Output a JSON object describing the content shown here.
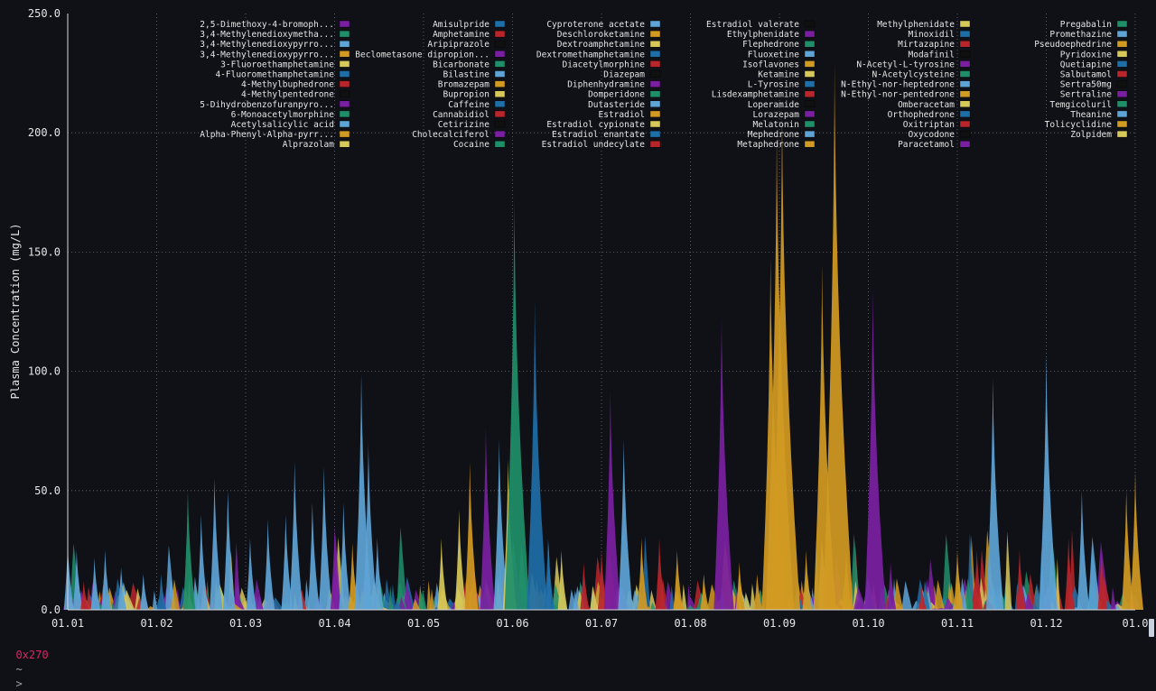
{
  "terminal": {
    "host": "0x270",
    "cwd": "~",
    "prompt_symbol": ">"
  },
  "colors": {
    "background": "#0f1117",
    "axis": "#d9d9d9",
    "grid": "#6b6f78",
    "text": "#e6e6e6",
    "palette": {
      "purple": "#7b1fa2",
      "green": "#1f8f6a",
      "lightblue": "#5ea4d6",
      "orange": "#d19a22",
      "yellow": "#d7c85a",
      "blue": "#1e6ea8",
      "red": "#b8262b",
      "black": "#101010",
      "teal": "#2a9a7e"
    }
  },
  "chart_data": {
    "type": "area",
    "title": "",
    "xlabel": "",
    "ylabel": "Plasma Concentration (mg/L)",
    "ylim": [
      0,
      250
    ],
    "y_ticks": [
      "0.0",
      "50.0",
      "100.0",
      "150.0",
      "200.0",
      "250.0"
    ],
    "x_ticks": [
      "01.01",
      "01.02",
      "01.03",
      "01.04",
      "01.05",
      "01.06",
      "01.07",
      "01.08",
      "01.09",
      "01.10",
      "01.11",
      "01.12",
      "01.0"
    ],
    "grid": true,
    "legend_placement": "top",
    "legend": [
      [
        {
          "name": "2,5-Dimethoxy-4-bromoph...",
          "color": "purple"
        },
        {
          "name": "3,4-Methylenedioxymetha...",
          "color": "green"
        },
        {
          "name": "3,4-Methylenedioxypyrro...",
          "color": "lightblue"
        },
        {
          "name": "3,4-Methylenedioxypyrro...",
          "color": "orange"
        },
        {
          "name": "3-Fluoroethamphetamine",
          "color": "yellow"
        },
        {
          "name": "4-Fluoromethamphetamine",
          "color": "blue"
        },
        {
          "name": "4-Methylbuphedrone",
          "color": "red"
        },
        {
          "name": "4-Methylpentedrone",
          "color": "black"
        },
        {
          "name": "5-Dihydrobenzofuranpyro...",
          "color": "purple"
        },
        {
          "name": "6-Monoacetylmorphine",
          "color": "green"
        },
        {
          "name": "Acetylsalicylic acid",
          "color": "lightblue"
        },
        {
          "name": "Alpha-Phenyl-Alpha-pyrr...",
          "color": "orange"
        },
        {
          "name": "Alprazolam",
          "color": "yellow"
        }
      ],
      [
        {
          "name": "Amisulpride",
          "color": "blue"
        },
        {
          "name": "Amphetamine",
          "color": "red"
        },
        {
          "name": "Aripiprazole",
          "color": "black"
        },
        {
          "name": "Beclometasone dipropion...",
          "color": "purple"
        },
        {
          "name": "Bicarbonate",
          "color": "green"
        },
        {
          "name": "Bilastine",
          "color": "lightblue"
        },
        {
          "name": "Bromazepam",
          "color": "orange"
        },
        {
          "name": "Bupropion",
          "color": "yellow"
        },
        {
          "name": "Caffeine",
          "color": "blue"
        },
        {
          "name": "Cannabidiol",
          "color": "red"
        },
        {
          "name": "Cetirizine",
          "color": "black"
        },
        {
          "name": "Cholecalciferol",
          "color": "purple"
        },
        {
          "name": "Cocaine",
          "color": "green"
        }
      ],
      [
        {
          "name": "Cyproterone acetate",
          "color": "lightblue"
        },
        {
          "name": "Deschloroketamine",
          "color": "orange"
        },
        {
          "name": "Dextroamphetamine",
          "color": "yellow"
        },
        {
          "name": "Dextromethamphetamine",
          "color": "blue"
        },
        {
          "name": "Diacetylmorphine",
          "color": "red"
        },
        {
          "name": "Diazepam",
          "color": "black"
        },
        {
          "name": "Diphenhydramine",
          "color": "purple"
        },
        {
          "name": "Domperidone",
          "color": "green"
        },
        {
          "name": "Dutasteride",
          "color": "lightblue"
        },
        {
          "name": "Estradiol",
          "color": "orange"
        },
        {
          "name": "Estradiol cypionate",
          "color": "yellow"
        },
        {
          "name": "Estradiol enantate",
          "color": "blue"
        },
        {
          "name": "Estradiol undecylate",
          "color": "red"
        }
      ],
      [
        {
          "name": "Estradiol valerate",
          "color": "black"
        },
        {
          "name": "Ethylphenidate",
          "color": "purple"
        },
        {
          "name": "Flephedrone",
          "color": "green"
        },
        {
          "name": "Fluoxetine",
          "color": "lightblue"
        },
        {
          "name": "Isoflavones",
          "color": "orange"
        },
        {
          "name": "Ketamine",
          "color": "yellow"
        },
        {
          "name": "L-Tyrosine",
          "color": "blue"
        },
        {
          "name": "Lisdexamphetamine",
          "color": "red"
        },
        {
          "name": "Loperamide",
          "color": "black"
        },
        {
          "name": "Lorazepam",
          "color": "purple"
        },
        {
          "name": "Melatonin",
          "color": "green"
        },
        {
          "name": "Mephedrone",
          "color": "lightblue"
        },
        {
          "name": "Metaphedrone",
          "color": "orange"
        }
      ],
      [
        {
          "name": "Methylphenidate",
          "color": "yellow"
        },
        {
          "name": "Minoxidil",
          "color": "blue"
        },
        {
          "name": "Mirtazapine",
          "color": "red"
        },
        {
          "name": "Modafinil",
          "color": "black"
        },
        {
          "name": "N-Acetyl-L-tyrosine",
          "color": "purple"
        },
        {
          "name": "N-Acetylcysteine",
          "color": "green"
        },
        {
          "name": "N-Ethyl-nor-heptedrone",
          "color": "lightblue"
        },
        {
          "name": "N-Ethyl-nor-pentedrone",
          "color": "orange"
        },
        {
          "name": "Omberacetam",
          "color": "yellow"
        },
        {
          "name": "Orthophedrone",
          "color": "blue"
        },
        {
          "name": "Oxitriptan",
          "color": "red"
        },
        {
          "name": "Oxycodone",
          "color": "black"
        },
        {
          "name": "Paracetamol",
          "color": "purple"
        }
      ],
      [
        {
          "name": "Pregabalin",
          "color": "green"
        },
        {
          "name": "Promethazine",
          "color": "lightblue"
        },
        {
          "name": "Pseudoephedrine",
          "color": "orange"
        },
        {
          "name": "Pyridoxine",
          "color": "yellow"
        },
        {
          "name": "Quetiapine",
          "color": "blue"
        },
        {
          "name": "Salbutamol",
          "color": "red"
        },
        {
          "name": "Sertra50mg",
          "color": "black"
        },
        {
          "name": "Sertraline",
          "color": "purple"
        },
        {
          "name": "Temgicoluril",
          "color": "green"
        },
        {
          "name": "Theanine",
          "color": "lightblue"
        },
        {
          "name": "Tolicyclidine",
          "color": "orange"
        },
        {
          "name": "Zolpidem",
          "color": "yellow"
        }
      ]
    ],
    "peaks": [
      {
        "x": 1.0,
        "y": 28,
        "color": "lightblue"
      },
      {
        "x": 1.1,
        "y": 25,
        "color": "lightblue"
      },
      {
        "x": 1.18,
        "y": 12,
        "color": "red"
      },
      {
        "x": 1.3,
        "y": 22,
        "color": "lightblue"
      },
      {
        "x": 1.42,
        "y": 25,
        "color": "lightblue"
      },
      {
        "x": 1.6,
        "y": 18,
        "color": "lightblue"
      },
      {
        "x": 1.85,
        "y": 15,
        "color": "lightblue"
      },
      {
        "x": 2.05,
        "y": 15,
        "color": "blue"
      },
      {
        "x": 2.35,
        "y": 50,
        "color": "green"
      },
      {
        "x": 2.5,
        "y": 40,
        "color": "lightblue"
      },
      {
        "x": 2.65,
        "y": 55,
        "color": "lightblue"
      },
      {
        "x": 2.8,
        "y": 50,
        "color": "lightblue"
      },
      {
        "x": 3.05,
        "y": 30,
        "color": "lightblue"
      },
      {
        "x": 3.25,
        "y": 38,
        "color": "lightblue"
      },
      {
        "x": 3.45,
        "y": 40,
        "color": "lightblue"
      },
      {
        "x": 3.55,
        "y": 62,
        "color": "lightblue"
      },
      {
        "x": 3.75,
        "y": 45,
        "color": "lightblue"
      },
      {
        "x": 3.88,
        "y": 60,
        "color": "lightblue"
      },
      {
        "x": 4.0,
        "y": 35,
        "color": "purple"
      },
      {
        "x": 4.1,
        "y": 45,
        "color": "lightblue"
      },
      {
        "x": 4.2,
        "y": 28,
        "color": "orange"
      },
      {
        "x": 4.3,
        "y": 99,
        "color": "lightblue"
      },
      {
        "x": 4.38,
        "y": 70,
        "color": "lightblue"
      },
      {
        "x": 4.48,
        "y": 30,
        "color": "lightblue"
      },
      {
        "x": 4.7,
        "y": 5,
        "color": "blue"
      },
      {
        "x": 5.2,
        "y": 30,
        "color": "yellow"
      },
      {
        "x": 5.4,
        "y": 42,
        "color": "yellow"
      },
      {
        "x": 5.52,
        "y": 62,
        "color": "orange"
      },
      {
        "x": 5.7,
        "y": 77,
        "color": "purple"
      },
      {
        "x": 5.85,
        "y": 72,
        "color": "lightblue"
      },
      {
        "x": 5.95,
        "y": 63,
        "color": "yellow"
      },
      {
        "x": 6.02,
        "y": 173,
        "color": "green"
      },
      {
        "x": 6.25,
        "y": 130,
        "color": "blue"
      },
      {
        "x": 6.4,
        "y": 30,
        "color": "blue"
      },
      {
        "x": 6.55,
        "y": 25,
        "color": "yellow"
      },
      {
        "x": 6.8,
        "y": 20,
        "color": "red"
      },
      {
        "x": 7.0,
        "y": 25,
        "color": "red"
      },
      {
        "x": 7.1,
        "y": 92,
        "color": "purple"
      },
      {
        "x": 7.25,
        "y": 72,
        "color": "lightblue"
      },
      {
        "x": 7.45,
        "y": 30,
        "color": "orange"
      },
      {
        "x": 7.65,
        "y": 30,
        "color": "red"
      },
      {
        "x": 7.85,
        "y": 25,
        "color": "orange"
      },
      {
        "x": 8.15,
        "y": 15,
        "color": "orange"
      },
      {
        "x": 8.35,
        "y": 123,
        "color": "purple"
      },
      {
        "x": 8.55,
        "y": 20,
        "color": "orange"
      },
      {
        "x": 8.75,
        "y": 15,
        "color": "orange"
      },
      {
        "x": 8.9,
        "y": 148,
        "color": "orange"
      },
      {
        "x": 8.97,
        "y": 200,
        "color": "orange"
      },
      {
        "x": 9.03,
        "y": 210,
        "color": "orange"
      },
      {
        "x": 9.3,
        "y": 25,
        "color": "orange"
      },
      {
        "x": 9.48,
        "y": 145,
        "color": "orange"
      },
      {
        "x": 9.62,
        "y": 230,
        "color": "orange"
      },
      {
        "x": 9.75,
        "y": 25,
        "color": "orange"
      },
      {
        "x": 10.05,
        "y": 135,
        "color": "purple"
      },
      {
        "x": 10.25,
        "y": 20,
        "color": "purple"
      },
      {
        "x": 10.6,
        "y": 10,
        "color": "red"
      },
      {
        "x": 11.0,
        "y": 25,
        "color": "orange"
      },
      {
        "x": 11.22,
        "y": 25,
        "color": "red"
      },
      {
        "x": 11.4,
        "y": 97,
        "color": "lightblue"
      },
      {
        "x": 11.7,
        "y": 25,
        "color": "red"
      },
      {
        "x": 12.0,
        "y": 107,
        "color": "lightblue"
      },
      {
        "x": 12.25,
        "y": 30,
        "color": "red"
      },
      {
        "x": 12.4,
        "y": 50,
        "color": "lightblue"
      },
      {
        "x": 12.62,
        "y": 25,
        "color": "red"
      },
      {
        "x": 12.9,
        "y": 50,
        "color": "orange"
      },
      {
        "x": 13.0,
        "y": 58,
        "color": "orange"
      }
    ]
  }
}
